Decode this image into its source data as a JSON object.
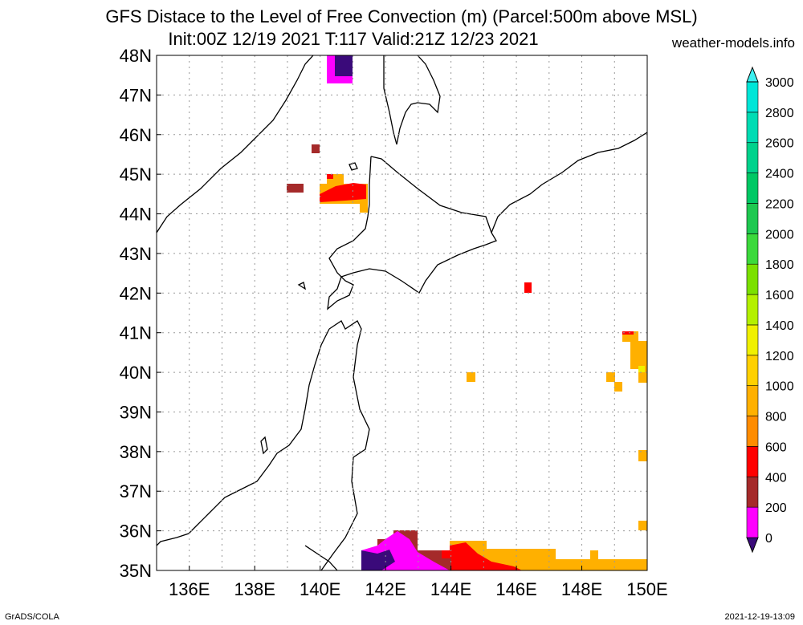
{
  "header": {
    "title_line1": "GFS Distace to the Level of Free Convection (m) (Parcel:500m above MSL)",
    "title_line2": "Init:00Z 12/19 2021 T:117 Valid:21Z 12/23 2021",
    "site": "weather-models.info"
  },
  "footer": {
    "left": "GrADS/COLA",
    "right": "2021-12-19-13:09"
  },
  "map": {
    "lat_labels": [
      "48N",
      "47N",
      "46N",
      "45N",
      "44N",
      "43N",
      "42N",
      "41N",
      "40N",
      "39N",
      "38N",
      "37N",
      "36N",
      "35N"
    ],
    "lon_labels": [
      "136E",
      "138E",
      "140E",
      "142E",
      "144E",
      "146E",
      "148E",
      "150E"
    ],
    "extent": {
      "lon_min": 135,
      "lon_max": 150,
      "lat_min": 35,
      "lat_max": 48
    },
    "grid_style": "dotted"
  },
  "colorbar": {
    "labels": [
      "0",
      "200",
      "400",
      "600",
      "800",
      "1000",
      "1200",
      "1400",
      "1600",
      "1800",
      "2000",
      "2200",
      "2400",
      "2600",
      "2800",
      "3000"
    ],
    "colors": [
      "#3a0a7a",
      "#ff00ff",
      "#a52a2a",
      "#ff0000",
      "#ff8c00",
      "#ffb000",
      "#ffd000",
      "#f0f000",
      "#b4f000",
      "#7be000",
      "#3cd93c",
      "#1ec850",
      "#00c864",
      "#00d28c",
      "#00dcb4",
      "#00e6d8",
      "#3cf0f0"
    ]
  }
}
